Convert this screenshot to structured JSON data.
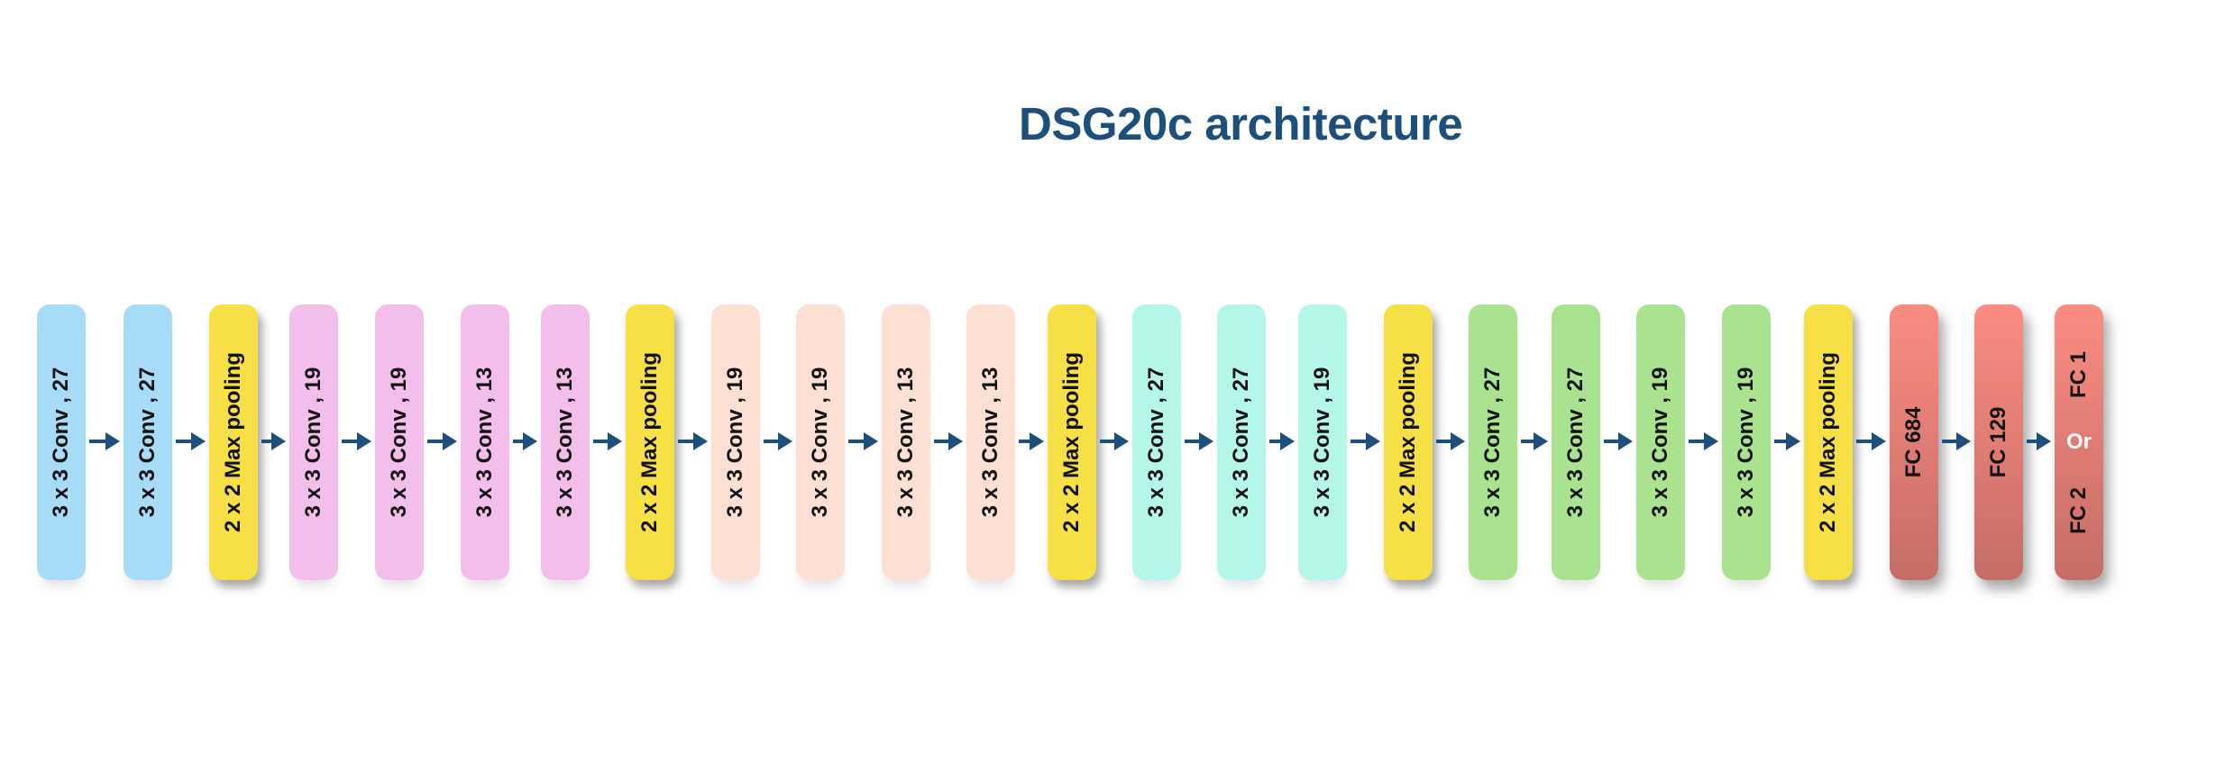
{
  "title": "DSG20c architecture",
  "colors": {
    "title": "#1d4f7c",
    "arrow": "#1d4f7c",
    "conv_blue": "#a6dcf7",
    "conv_pink": "#f3bfea",
    "conv_peach": "#fde0d3",
    "conv_cyan": "#b5f6ea",
    "conv_green": "#a9e38f",
    "pool_yellow": "#f7df46",
    "fc_red": "#ef857c"
  },
  "layers": [
    {
      "type": "conv",
      "label": "3 x 3 Conv , 27",
      "color": "conv_blue"
    },
    {
      "type": "conv",
      "label": "3 x 3 Conv , 27",
      "color": "conv_blue"
    },
    {
      "type": "pool",
      "label": "2 x 2 Max pooling",
      "color": "pool_yellow"
    },
    {
      "type": "conv",
      "label": "3 x 3 Conv , 19",
      "color": "conv_pink"
    },
    {
      "type": "conv",
      "label": "3 x 3 Conv , 19",
      "color": "conv_pink"
    },
    {
      "type": "conv",
      "label": "3 x 3 Conv , 13",
      "color": "conv_pink"
    },
    {
      "type": "conv",
      "label": "3 x 3 Conv , 13",
      "color": "conv_pink"
    },
    {
      "type": "pool",
      "label": "2 x 2 Max pooling",
      "color": "pool_yellow"
    },
    {
      "type": "conv",
      "label": "3 x 3 Conv , 19",
      "color": "conv_peach"
    },
    {
      "type": "conv",
      "label": "3 x 3 Conv , 19",
      "color": "conv_peach"
    },
    {
      "type": "conv",
      "label": "3 x 3 Conv , 13",
      "color": "conv_peach"
    },
    {
      "type": "conv",
      "label": "3 x 3 Conv , 13",
      "color": "conv_peach"
    },
    {
      "type": "pool",
      "label": "2 x 2 Max pooling",
      "color": "pool_yellow"
    },
    {
      "type": "conv",
      "label": "3 x 3 Conv , 27",
      "color": "conv_cyan"
    },
    {
      "type": "conv",
      "label": "3 x 3 Conv , 27",
      "color": "conv_cyan"
    },
    {
      "type": "conv",
      "label": "3 x 3 Conv , 19",
      "color": "conv_cyan"
    },
    {
      "type": "pool",
      "label": "2 x 2 Max pooling",
      "color": "pool_yellow"
    },
    {
      "type": "conv",
      "label": "3 x 3 Conv , 27",
      "color": "conv_green"
    },
    {
      "type": "conv",
      "label": "3 x 3 Conv , 27",
      "color": "conv_green"
    },
    {
      "type": "conv",
      "label": "3 x 3 Conv , 19",
      "color": "conv_green"
    },
    {
      "type": "conv",
      "label": "3 x 3 Conv , 19",
      "color": "conv_green"
    },
    {
      "type": "pool",
      "label": "2 x 2 Max pooling",
      "color": "pool_yellow"
    },
    {
      "type": "fc",
      "label": "FC 684",
      "color": "fc_red"
    },
    {
      "type": "fc",
      "label": "FC 129",
      "color": "fc_red"
    },
    {
      "type": "fc-choice",
      "label_top": "FC 1",
      "label_mid": "Or",
      "label_bottom": "FC 2",
      "color": "fc_red"
    }
  ]
}
